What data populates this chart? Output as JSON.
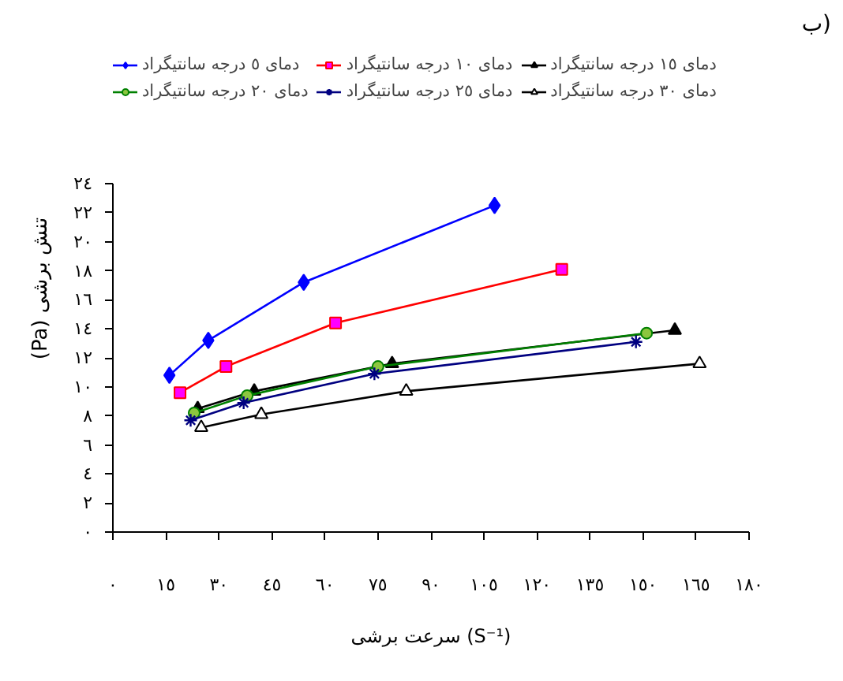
{
  "chart_data": {
    "type": "line",
    "title": "ب)",
    "xlabel": "سرعت برشی (S⁻¹)",
    "ylabel": "(Pa) تنش برشی",
    "xlim": [
      0,
      180
    ],
    "ylim": [
      0,
      24
    ],
    "xticks": [
      {
        "value": 0,
        "label": "٠"
      },
      {
        "value": 15,
        "label": "١٥"
      },
      {
        "value": 30,
        "label": "٣٠"
      },
      {
        "value": 45,
        "label": "٤٥"
      },
      {
        "value": 60,
        "label": "٦٠"
      },
      {
        "value": 75,
        "label": "٧٥"
      },
      {
        "value": 90,
        "label": "٩٠"
      },
      {
        "value": 105,
        "label": "١٠٥"
      },
      {
        "value": 120,
        "label": "١٢٠"
      },
      {
        "value": 135,
        "label": "١٣٥"
      },
      {
        "value": 150,
        "label": "١٥٠"
      },
      {
        "value": 165,
        "label": "١٦٥"
      },
      {
        "value": 180,
        "label": "١٨٠"
      }
    ],
    "yticks": [
      {
        "value": 0,
        "label": "٠"
      },
      {
        "value": 2,
        "label": "٢"
      },
      {
        "value": 4,
        "label": "٤"
      },
      {
        "value": 6,
        "label": "٦"
      },
      {
        "value": 8,
        "label": "٨"
      },
      {
        "value": 10,
        "label": "١٠"
      },
      {
        "value": 12,
        "label": "١٢"
      },
      {
        "value": 14,
        "label": "١٤"
      },
      {
        "value": 16,
        "label": "١٦"
      },
      {
        "value": 18,
        "label": "١٨"
      },
      {
        "value": 20,
        "label": "٢٠"
      },
      {
        "value": 22,
        "label": "٢٢"
      },
      {
        "value": 24,
        "label": "٢٤"
      }
    ],
    "grid": false,
    "legend": "top",
    "line_style": "solid",
    "series": [
      {
        "name": "دمای ٥ درجه سانتیگراد",
        "color": "#0000ff",
        "marker": "diamond",
        "x": [
          16,
          27,
          54,
          108
        ],
        "values": [
          10.8,
          13.2,
          17.2,
          22.5
        ]
      },
      {
        "name": "دمای ١٠ درجه سانتیگراد",
        "color": "#ff0000",
        "colors": [
          "#ff00ff",
          "#ff00ff",
          "#ff00ff",
          "#ff00ff"
        ],
        "marker": "square",
        "x": [
          19,
          32,
          63,
          127
        ],
        "values": [
          9.6,
          11.4,
          14.4,
          18.1
        ]
      },
      {
        "name": "دمای ١٥ درجه سانتیگراد",
        "color": "#000000",
        "marker": "triangle",
        "x": [
          24,
          40,
          79,
          159
        ],
        "values": [
          8.5,
          9.7,
          11.6,
          13.9
        ]
      },
      {
        "name": "دمای ٢٠ درجه سانتیگراد",
        "color": "#008000",
        "colors": [
          "#8cc63f",
          "#8cc63f",
          "#8cc63f",
          "#8cc63f"
        ],
        "marker": "circle",
        "x": [
          23,
          38,
          75,
          151
        ],
        "values": [
          8.2,
          9.4,
          11.4,
          13.7
        ]
      },
      {
        "name": "دمای ٢٥ درجه سانتیگراد",
        "color": "#000080",
        "marker": "cross",
        "x": [
          22,
          37,
          74,
          148
        ],
        "values": [
          7.7,
          8.9,
          10.9,
          13.1
        ]
      },
      {
        "name": "دمای ٣٠ درجه سانتیگراد",
        "color": "#000000",
        "colors": [
          "#ffffff",
          "#ffffff",
          "#ffffff",
          "#ffffff"
        ],
        "marker": "triangle",
        "x": [
          25,
          42,
          83,
          166
        ],
        "values": [
          7.2,
          8.1,
          9.7,
          11.6
        ]
      }
    ]
  }
}
